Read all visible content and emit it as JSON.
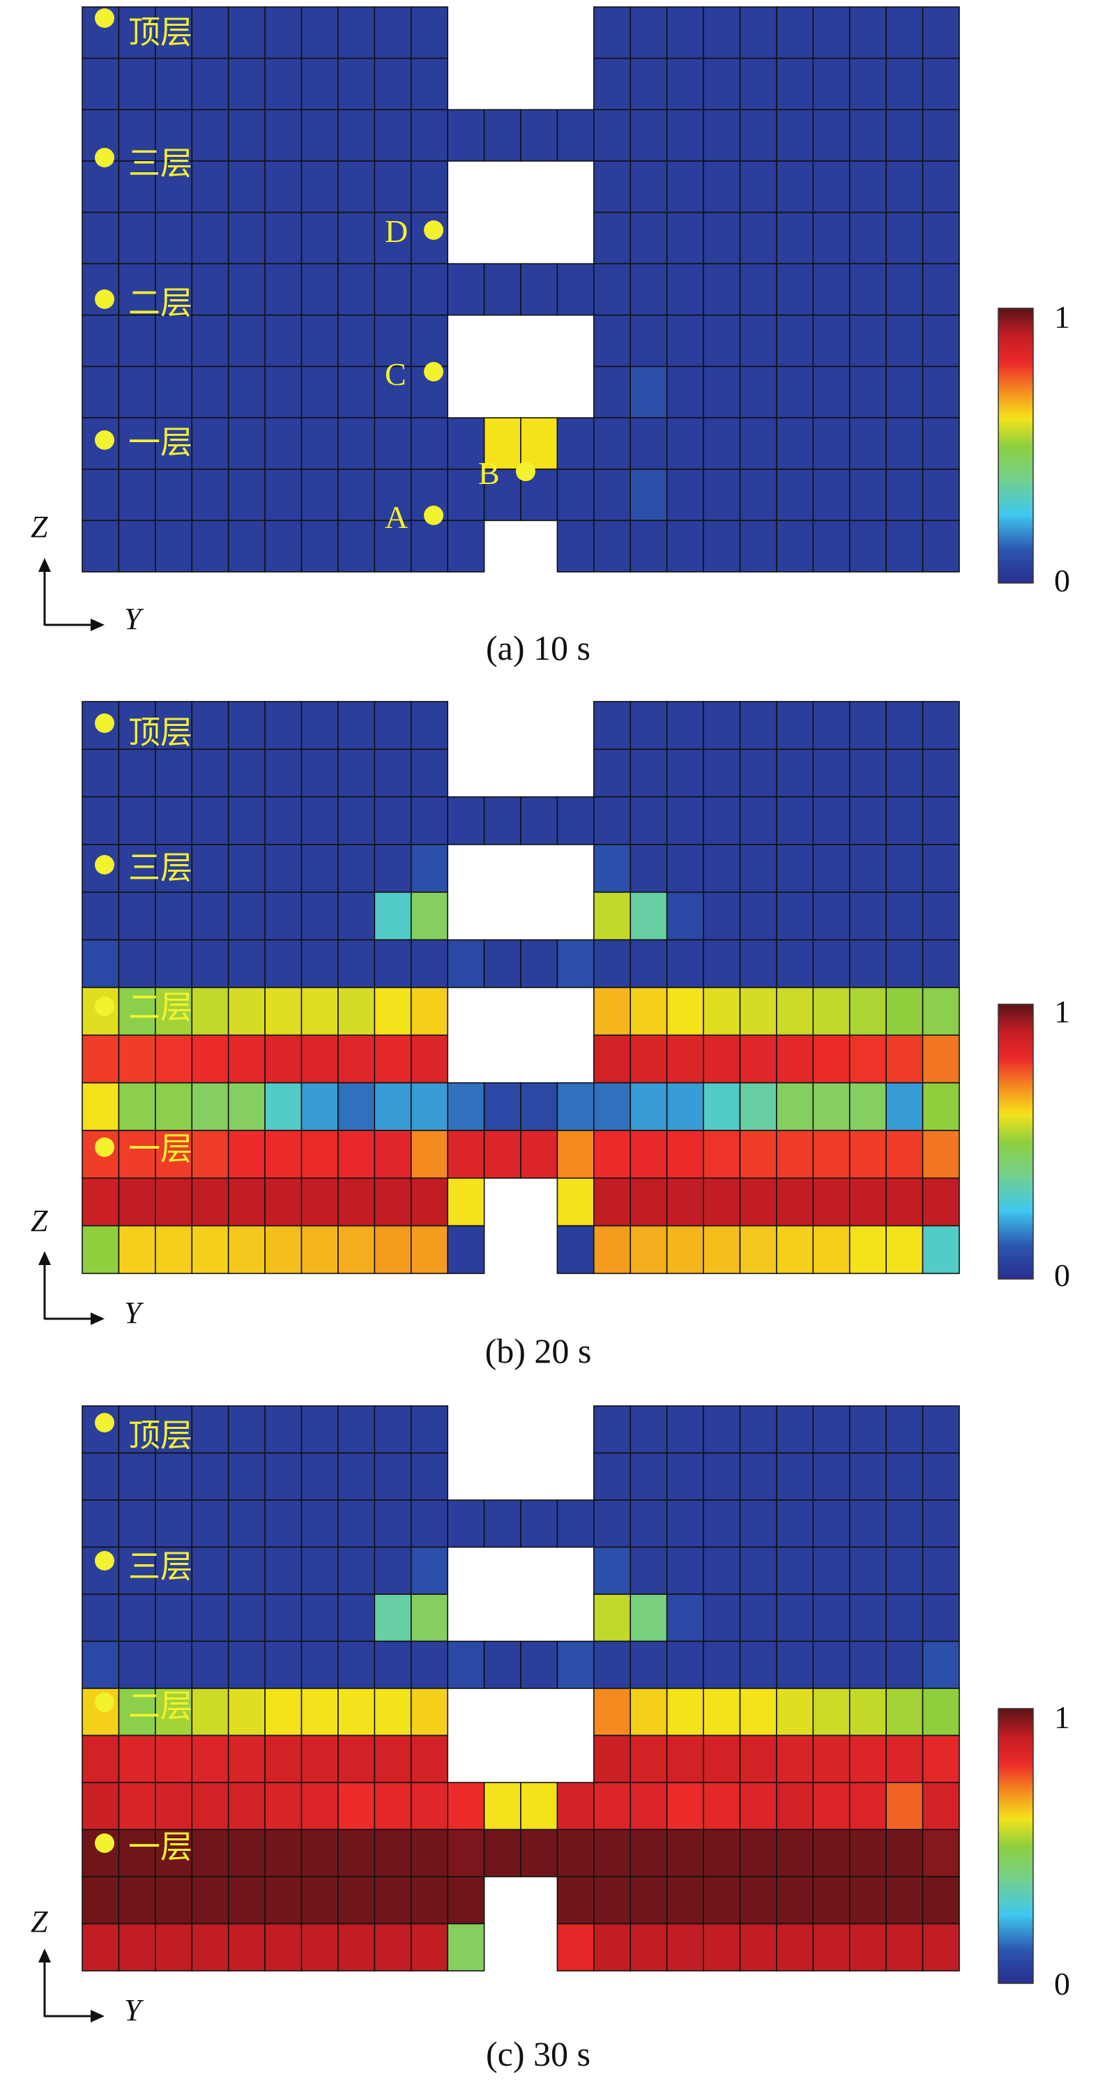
{
  "panels": [
    {
      "caption": "(a) 10 s",
      "time": "10 s",
      "colorbar": {
        "max_label": "1",
        "min_label": "0"
      },
      "axes": {
        "z_label": "Z",
        "y_label": "Y"
      },
      "floor_labels": [
        "顶层",
        "三层",
        "二层",
        "一层"
      ],
      "point_labels": [
        "D",
        "C",
        "B",
        "A"
      ]
    },
    {
      "caption": "(b) 20 s",
      "time": "20 s",
      "colorbar": {
        "max_label": "1",
        "min_label": "0"
      },
      "axes": {
        "z_label": "Z",
        "y_label": "Y"
      },
      "floor_labels": [
        "顶层",
        "三层",
        "二层",
        "一层"
      ]
    },
    {
      "caption": "(c) 30 s",
      "time": "30 s",
      "colorbar": {
        "max_label": "1",
        "min_label": "0"
      },
      "axes": {
        "z_label": "Z",
        "y_label": "Y"
      },
      "floor_labels": [
        "顶层",
        "三层",
        "二层",
        "一层"
      ]
    }
  ],
  "chart_data": [
    {
      "type": "heatmap",
      "title": "(a) 10 s",
      "xlabel": "Y",
      "ylabel": "Z",
      "value_range": [
        0,
        1
      ],
      "colormap": "jet",
      "row_order": "top-to-bottom",
      "columns": 24,
      "cell_note": "null = empty (no cell)",
      "rows": [
        [
          0.05,
          0.05,
          0.05,
          0.05,
          0.05,
          0.05,
          0.05,
          0.05,
          0.05,
          0.05,
          null,
          null,
          null,
          null,
          0.05,
          0.05,
          0.05,
          0.05,
          0.05,
          0.05,
          0.05,
          0.05,
          0.05,
          0.05
        ],
        [
          0.05,
          0.05,
          0.05,
          0.05,
          0.05,
          0.05,
          0.05,
          0.05,
          0.05,
          0.05,
          null,
          null,
          null,
          null,
          0.05,
          0.05,
          0.05,
          0.05,
          0.05,
          0.05,
          0.05,
          0.05,
          0.05,
          0.05
        ],
        [
          0.05,
          0.05,
          0.05,
          0.05,
          0.05,
          0.05,
          0.05,
          0.05,
          0.05,
          0.05,
          0.05,
          0.05,
          0.05,
          0.05,
          0.05,
          0.05,
          0.05,
          0.05,
          0.05,
          0.05,
          0.05,
          0.05,
          0.05,
          0.05
        ],
        [
          0.05,
          0.05,
          0.05,
          0.05,
          0.05,
          0.05,
          0.05,
          0.05,
          0.05,
          0.05,
          null,
          null,
          null,
          null,
          0.05,
          0.05,
          0.05,
          0.05,
          0.05,
          0.05,
          0.05,
          0.05,
          0.05,
          0.05
        ],
        [
          0.05,
          0.05,
          0.05,
          0.05,
          0.05,
          0.05,
          0.05,
          0.05,
          0.05,
          0.05,
          null,
          null,
          null,
          null,
          0.05,
          0.05,
          0.05,
          0.05,
          0.05,
          0.05,
          0.05,
          0.05,
          0.05,
          0.05
        ],
        [
          0.05,
          0.05,
          0.05,
          0.05,
          0.05,
          0.05,
          0.05,
          0.05,
          0.05,
          0.05,
          0.05,
          0.05,
          0.05,
          0.05,
          0.05,
          0.05,
          0.05,
          0.05,
          0.05,
          0.05,
          0.05,
          0.05,
          0.05,
          0.05
        ],
        [
          0.05,
          0.05,
          0.05,
          0.05,
          0.05,
          0.05,
          0.05,
          0.05,
          0.05,
          0.05,
          null,
          null,
          null,
          null,
          0.05,
          0.05,
          0.05,
          0.05,
          0.05,
          0.05,
          0.05,
          0.05,
          0.05,
          0.05
        ],
        [
          0.05,
          0.05,
          0.05,
          0.05,
          0.05,
          0.05,
          0.05,
          0.05,
          0.05,
          0.05,
          null,
          null,
          null,
          null,
          0.05,
          0.1,
          0.05,
          0.05,
          0.05,
          0.05,
          0.05,
          0.05,
          0.05,
          0.05
        ],
        [
          0.05,
          0.05,
          0.05,
          0.05,
          0.05,
          0.05,
          0.05,
          0.05,
          0.05,
          0.05,
          0.05,
          0.6,
          0.6,
          0.05,
          0.05,
          0.05,
          0.05,
          0.05,
          0.05,
          0.05,
          0.05,
          0.05,
          0.05,
          0.05
        ],
        [
          0.05,
          0.05,
          0.05,
          0.05,
          0.05,
          0.05,
          0.05,
          0.05,
          0.05,
          0.05,
          0.05,
          0.05,
          0.05,
          0.05,
          0.05,
          0.1,
          0.05,
          0.05,
          0.05,
          0.05,
          0.05,
          0.05,
          0.05,
          0.05
        ],
        [
          0.05,
          0.05,
          0.05,
          0.05,
          0.05,
          0.05,
          0.05,
          0.05,
          0.05,
          0.05,
          0.05,
          null,
          null,
          0.05,
          0.05,
          0.05,
          0.05,
          0.05,
          0.05,
          0.05,
          0.05,
          0.05,
          0.05,
          0.05
        ]
      ]
    },
    {
      "type": "heatmap",
      "title": "(b) 20 s",
      "xlabel": "Y",
      "ylabel": "Z",
      "value_range": [
        0,
        1
      ],
      "colormap": "jet",
      "row_order": "top-to-bottom",
      "columns": 24,
      "cell_note": "null = empty (no cell)",
      "rows": [
        [
          0.05,
          0.05,
          0.05,
          0.05,
          0.05,
          0.05,
          0.05,
          0.05,
          0.05,
          0.05,
          null,
          null,
          null,
          null,
          0.05,
          0.05,
          0.05,
          0.05,
          0.05,
          0.05,
          0.05,
          0.05,
          0.05,
          0.05
        ],
        [
          0.05,
          0.05,
          0.05,
          0.05,
          0.05,
          0.05,
          0.05,
          0.05,
          0.05,
          0.05,
          null,
          null,
          null,
          null,
          0.05,
          0.05,
          0.05,
          0.05,
          0.05,
          0.05,
          0.05,
          0.05,
          0.05,
          0.05
        ],
        [
          0.05,
          0.05,
          0.05,
          0.05,
          0.05,
          0.05,
          0.05,
          0.05,
          0.05,
          0.05,
          0.05,
          0.05,
          0.05,
          0.05,
          0.05,
          0.05,
          0.05,
          0.05,
          0.05,
          0.05,
          0.05,
          0.05,
          0.05,
          0.05
        ],
        [
          0.05,
          0.05,
          0.05,
          0.05,
          0.05,
          0.05,
          0.05,
          0.05,
          0.05,
          0.1,
          null,
          null,
          null,
          null,
          0.1,
          0.05,
          0.05,
          0.05,
          0.05,
          0.05,
          0.05,
          0.05,
          0.05,
          0.05
        ],
        [
          0.05,
          0.05,
          0.05,
          0.05,
          0.05,
          0.05,
          0.05,
          0.05,
          0.3,
          0.45,
          null,
          null,
          null,
          null,
          0.55,
          0.35,
          0.08,
          0.05,
          0.05,
          0.05,
          0.05,
          0.05,
          0.05,
          0.05
        ],
        [
          0.08,
          0.05,
          0.05,
          0.05,
          0.05,
          0.05,
          0.05,
          0.05,
          0.05,
          0.05,
          0.08,
          0.05,
          0.05,
          0.1,
          0.05,
          0.05,
          0.05,
          0.05,
          0.05,
          0.05,
          0.05,
          0.05,
          0.05,
          0.05
        ],
        [
          0.58,
          0.48,
          0.52,
          0.55,
          0.57,
          0.58,
          0.58,
          0.57,
          0.6,
          0.62,
          null,
          null,
          null,
          null,
          0.65,
          0.62,
          0.6,
          0.58,
          0.57,
          0.56,
          0.55,
          0.53,
          0.5,
          0.48
        ],
        [
          0.78,
          0.78,
          0.79,
          0.8,
          0.82,
          0.84,
          0.84,
          0.83,
          0.82,
          0.84,
          null,
          null,
          null,
          null,
          0.86,
          0.85,
          0.84,
          0.84,
          0.83,
          0.82,
          0.8,
          0.79,
          0.78,
          0.72
        ],
        [
          0.6,
          0.48,
          0.48,
          0.45,
          0.45,
          0.3,
          0.2,
          0.15,
          0.2,
          0.2,
          0.15,
          0.08,
          0.08,
          0.15,
          0.15,
          0.2,
          0.2,
          0.3,
          0.35,
          0.45,
          0.45,
          0.45,
          0.2,
          0.5
        ],
        [
          0.78,
          0.78,
          0.78,
          0.78,
          0.8,
          0.8,
          0.8,
          0.81,
          0.83,
          0.7,
          0.84,
          0.84,
          0.84,
          0.7,
          0.8,
          0.81,
          0.8,
          0.79,
          0.78,
          0.78,
          0.78,
          0.78,
          0.78,
          0.72
        ],
        [
          0.88,
          0.9,
          0.9,
          0.9,
          0.9,
          0.9,
          0.9,
          0.9,
          0.9,
          0.9,
          0.6,
          null,
          null,
          0.6,
          0.9,
          0.9,
          0.9,
          0.9,
          0.9,
          0.9,
          0.9,
          0.9,
          0.9,
          0.9
        ],
        [
          0.5,
          0.62,
          0.62,
          0.62,
          0.63,
          0.64,
          0.65,
          0.66,
          0.68,
          0.68,
          0.05,
          null,
          null,
          0.05,
          0.68,
          0.66,
          0.65,
          0.64,
          0.63,
          0.62,
          0.62,
          0.6,
          0.6,
          0.3
        ]
      ]
    },
    {
      "type": "heatmap",
      "title": "(c) 30 s",
      "xlabel": "Y",
      "ylabel": "Z",
      "value_range": [
        0,
        1
      ],
      "colormap": "jet",
      "row_order": "top-to-bottom",
      "columns": 24,
      "cell_note": "null = empty (no cell)",
      "rows": [
        [
          0.05,
          0.05,
          0.05,
          0.05,
          0.05,
          0.05,
          0.05,
          0.05,
          0.05,
          0.05,
          null,
          null,
          null,
          null,
          0.05,
          0.05,
          0.05,
          0.05,
          0.05,
          0.05,
          0.05,
          0.05,
          0.05,
          0.05
        ],
        [
          0.05,
          0.05,
          0.05,
          0.05,
          0.05,
          0.05,
          0.05,
          0.05,
          0.05,
          0.05,
          null,
          null,
          null,
          null,
          0.05,
          0.05,
          0.05,
          0.05,
          0.05,
          0.05,
          0.05,
          0.05,
          0.05,
          0.05
        ],
        [
          0.05,
          0.05,
          0.05,
          0.05,
          0.05,
          0.05,
          0.05,
          0.05,
          0.05,
          0.05,
          0.05,
          0.05,
          0.05,
          0.05,
          0.05,
          0.05,
          0.05,
          0.05,
          0.05,
          0.05,
          0.05,
          0.05,
          0.05,
          0.05
        ],
        [
          0.05,
          0.05,
          0.05,
          0.05,
          0.05,
          0.05,
          0.05,
          0.05,
          0.05,
          0.1,
          null,
          null,
          null,
          null,
          0.1,
          0.05,
          0.05,
          0.05,
          0.05,
          0.05,
          0.05,
          0.05,
          0.05,
          0.05
        ],
        [
          0.05,
          0.05,
          0.05,
          0.05,
          0.05,
          0.05,
          0.05,
          0.05,
          0.35,
          0.45,
          null,
          null,
          null,
          null,
          0.55,
          0.4,
          0.08,
          0.05,
          0.05,
          0.05,
          0.05,
          0.05,
          0.05,
          0.05
        ],
        [
          0.08,
          0.05,
          0.05,
          0.05,
          0.05,
          0.05,
          0.05,
          0.05,
          0.05,
          0.05,
          0.08,
          0.05,
          0.05,
          0.1,
          0.05,
          0.05,
          0.05,
          0.05,
          0.05,
          0.05,
          0.05,
          0.05,
          0.05,
          0.1
        ],
        [
          0.62,
          0.48,
          0.52,
          0.56,
          0.58,
          0.6,
          0.6,
          0.6,
          0.6,
          0.62,
          null,
          null,
          null,
          null,
          0.7,
          0.62,
          0.6,
          0.6,
          0.6,
          0.58,
          0.56,
          0.55,
          0.52,
          0.5
        ],
        [
          0.86,
          0.84,
          0.84,
          0.84,
          0.85,
          0.86,
          0.86,
          0.86,
          0.86,
          0.86,
          null,
          null,
          null,
          null,
          0.88,
          0.86,
          0.86,
          0.86,
          0.86,
          0.85,
          0.85,
          0.84,
          0.84,
          0.82
        ],
        [
          0.88,
          0.85,
          0.86,
          0.86,
          0.86,
          0.85,
          0.84,
          0.8,
          0.82,
          0.83,
          0.8,
          0.6,
          0.6,
          0.86,
          0.84,
          0.84,
          0.8,
          0.82,
          0.84,
          0.86,
          0.84,
          0.84,
          0.74,
          0.86
        ],
        [
          0.98,
          0.98,
          0.98,
          0.98,
          0.98,
          0.98,
          0.98,
          0.98,
          0.98,
          0.98,
          0.97,
          0.98,
          0.98,
          0.98,
          0.98,
          0.98,
          0.98,
          0.98,
          0.98,
          0.98,
          0.98,
          0.98,
          0.98,
          0.96
        ],
        [
          0.98,
          0.98,
          0.98,
          0.98,
          0.98,
          0.98,
          0.98,
          0.98,
          0.98,
          0.98,
          0.98,
          null,
          null,
          0.98,
          0.98,
          0.98,
          0.98,
          0.98,
          0.98,
          0.98,
          0.98,
          0.98,
          0.98,
          0.98
        ],
        [
          0.9,
          0.9,
          0.9,
          0.9,
          0.9,
          0.9,
          0.9,
          0.9,
          0.9,
          0.9,
          0.45,
          null,
          null,
          0.82,
          0.9,
          0.9,
          0.9,
          0.9,
          0.9,
          0.9,
          0.9,
          0.9,
          0.9,
          0.9
        ]
      ]
    }
  ]
}
